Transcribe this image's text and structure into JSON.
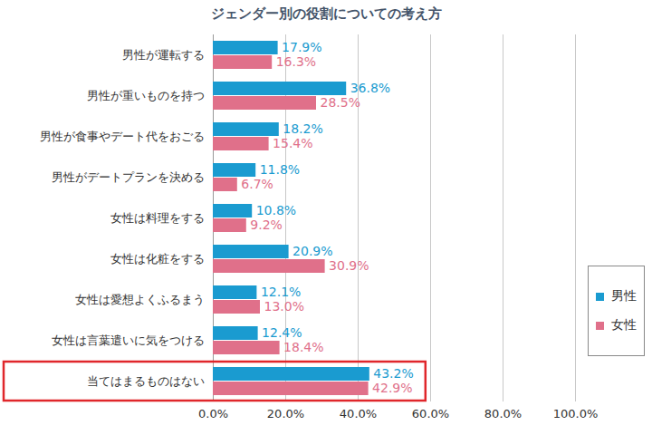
{
  "chart_data": {
    "type": "bar",
    "title": "ジェンダー別の役割についての考え方",
    "orientation": "horizontal",
    "categories": [
      "男性が運転する",
      "男性が重いものを持つ",
      "男性が食事やデート代をおごる",
      "男性がデートプランを決める",
      "女性は料理をする",
      "女性は化粧をする",
      "女性は愛想よくふるまう",
      "女性は言葉遣いに気をつける",
      "当てはまるものはない"
    ],
    "series": [
      {
        "name": "男性",
        "color": "#1a9bd0",
        "values": [
          17.9,
          36.8,
          18.2,
          11.8,
          10.8,
          20.9,
          12.1,
          12.4,
          43.2
        ],
        "value_labels": [
          "17.9%",
          "36.8%",
          "18.2%",
          "11.8%",
          "10.8%",
          "20.9%",
          "12.1%",
          "12.4%",
          "43.2%"
        ]
      },
      {
        "name": "女性",
        "color": "#e0708a",
        "values": [
          16.3,
          28.5,
          15.4,
          6.7,
          9.2,
          30.9,
          13.0,
          18.4,
          42.9
        ],
        "value_labels": [
          "16.3%",
          "28.5%",
          "15.4%",
          "6.7%",
          "9.2%",
          "30.9%",
          "13.0%",
          "18.4%",
          "42.9%"
        ]
      }
    ],
    "xlim": [
      0,
      100
    ],
    "xticks": [
      {
        "value": 0,
        "label": "0.0%"
      },
      {
        "value": 20,
        "label": "20.0%"
      },
      {
        "value": 40,
        "label": "40.0%"
      },
      {
        "value": 60,
        "label": "60.0%"
      },
      {
        "value": 80,
        "label": "80.0%"
      },
      {
        "value": 100,
        "label": "100.0%"
      }
    ],
    "grid": true,
    "legend": "right",
    "data_labels": true
  }
}
